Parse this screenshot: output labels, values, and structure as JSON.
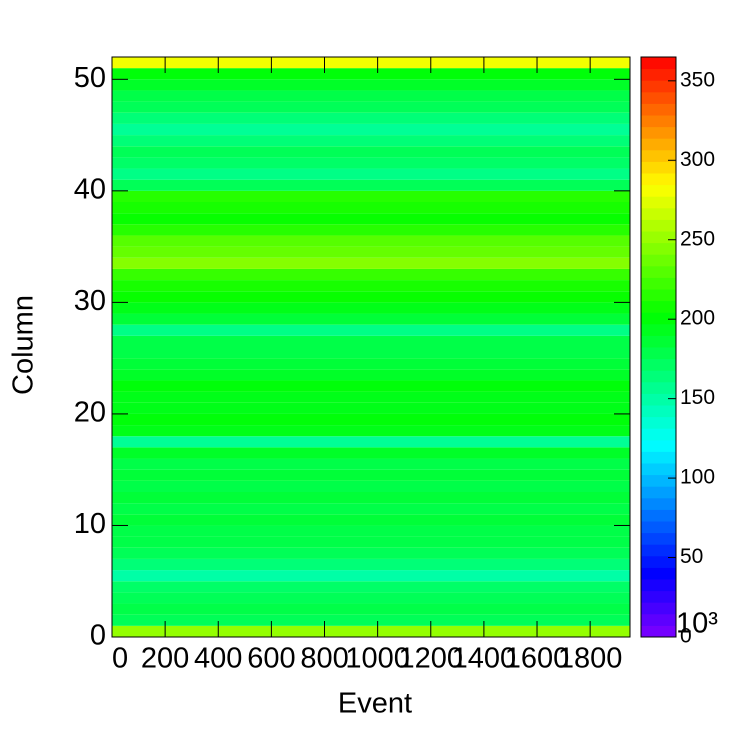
{
  "chart_data": {
    "type": "heatmap",
    "x_label": "Event",
    "y_label": "Column",
    "xbins": [
      0,
      1950
    ],
    "ybins_count": 52,
    "z": [
      250,
      175,
      180,
      175,
      170,
      150,
      165,
      175,
      180,
      180,
      185,
      180,
      185,
      180,
      185,
      180,
      190,
      155,
      195,
      200,
      195,
      195,
      200,
      190,
      185,
      180,
      180,
      160,
      185,
      195,
      205,
      210,
      220,
      245,
      235,
      230,
      215,
      205,
      210,
      215,
      175,
      160,
      170,
      175,
      165,
      155,
      165,
      175,
      180,
      190,
      200,
      280
    ],
    "xlim": [
      0,
      1950
    ],
    "xticks": [
      0,
      200,
      400,
      600,
      800,
      1000,
      1200,
      1400,
      1600,
      1800
    ],
    "ylim": [
      0,
      52
    ],
    "yticks": [
      0,
      10,
      20,
      30,
      40,
      50
    ],
    "zlim": [
      0,
      365
    ],
    "zticks": [
      0,
      50,
      100,
      150,
      200,
      250,
      300,
      350
    ],
    "x_multiplier_label": "10³",
    "colormap": "rainbow",
    "palette_steps": 50
  }
}
